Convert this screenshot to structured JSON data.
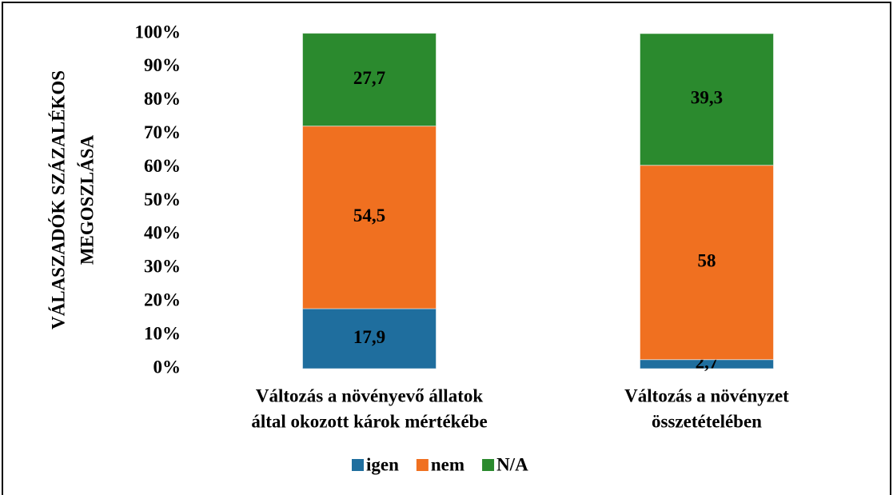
{
  "chart_data": {
    "type": "stacked_bar",
    "y_label": [
      "VÁLASZADÓK  SZÁZALÉKOS",
      "MEGOSZLÁSA"
    ],
    "categories": [
      [
        "Változás a növényevő állatok",
        "által okozott károk mértékébe"
      ],
      [
        "Változás a növényzet",
        "összetételében"
      ]
    ],
    "series": [
      {
        "name": "igen",
        "color": "#1f6e9e",
        "values": [
          17.9,
          2.7
        ],
        "value_labels": [
          "17,9",
          "2,7"
        ]
      },
      {
        "name": "nem",
        "color": "#f07020",
        "values": [
          54.5,
          58
        ],
        "value_labels": [
          "54,5",
          "58"
        ]
      },
      {
        "name": "N/A",
        "color": "#2b8a2e",
        "values": [
          27.7,
          39.3
        ],
        "value_labels": [
          "27,7",
          "39,3"
        ]
      }
    ],
    "ylim": [
      0,
      100
    ],
    "yticks": [
      {
        "value": 0,
        "label": "0%"
      },
      {
        "value": 10,
        "label": "10%"
      },
      {
        "value": 20,
        "label": "20%"
      },
      {
        "value": 30,
        "label": "30%"
      },
      {
        "value": 40,
        "label": "40%"
      },
      {
        "value": 50,
        "label": "50%"
      },
      {
        "value": 60,
        "label": "60%"
      },
      {
        "value": 70,
        "label": "70%"
      },
      {
        "value": 80,
        "label": "80%"
      },
      {
        "value": 90,
        "label": "90%"
      },
      {
        "value": 100,
        "label": "100%"
      }
    ],
    "legend": "bottom"
  }
}
